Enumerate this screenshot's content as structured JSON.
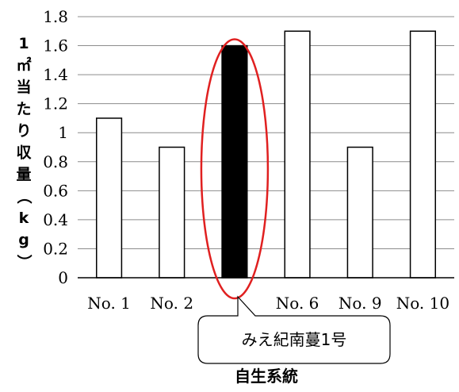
{
  "chart_data": {
    "type": "bar",
    "categories": [
      "No. 1",
      "No. 2",
      "",
      "No. 6",
      "No. 9",
      "No. 10"
    ],
    "values": [
      1.1,
      0.9,
      1.6,
      1.7,
      0.9,
      1.7
    ],
    "highlight_index": 2,
    "bar_colors": [
      "#ffffff",
      "#ffffff",
      "#000000",
      "#ffffff",
      "#ffffff",
      "#ffffff"
    ],
    "bar_stroke": "#000000",
    "ylabel": "1㎡当たり収量（kg）",
    "xlabel": "自生系統",
    "ylim": [
      0,
      1.8
    ],
    "yticks": [
      "0",
      "0.2",
      "0.4",
      "0.6",
      "0.8",
      "1",
      "1.2",
      "1.4",
      "1.6",
      "1.8"
    ],
    "grid": true,
    "annotation": {
      "text": "みえ紀南蔓1号",
      "target_index": 2,
      "ellipse_color": "#e02020"
    }
  }
}
